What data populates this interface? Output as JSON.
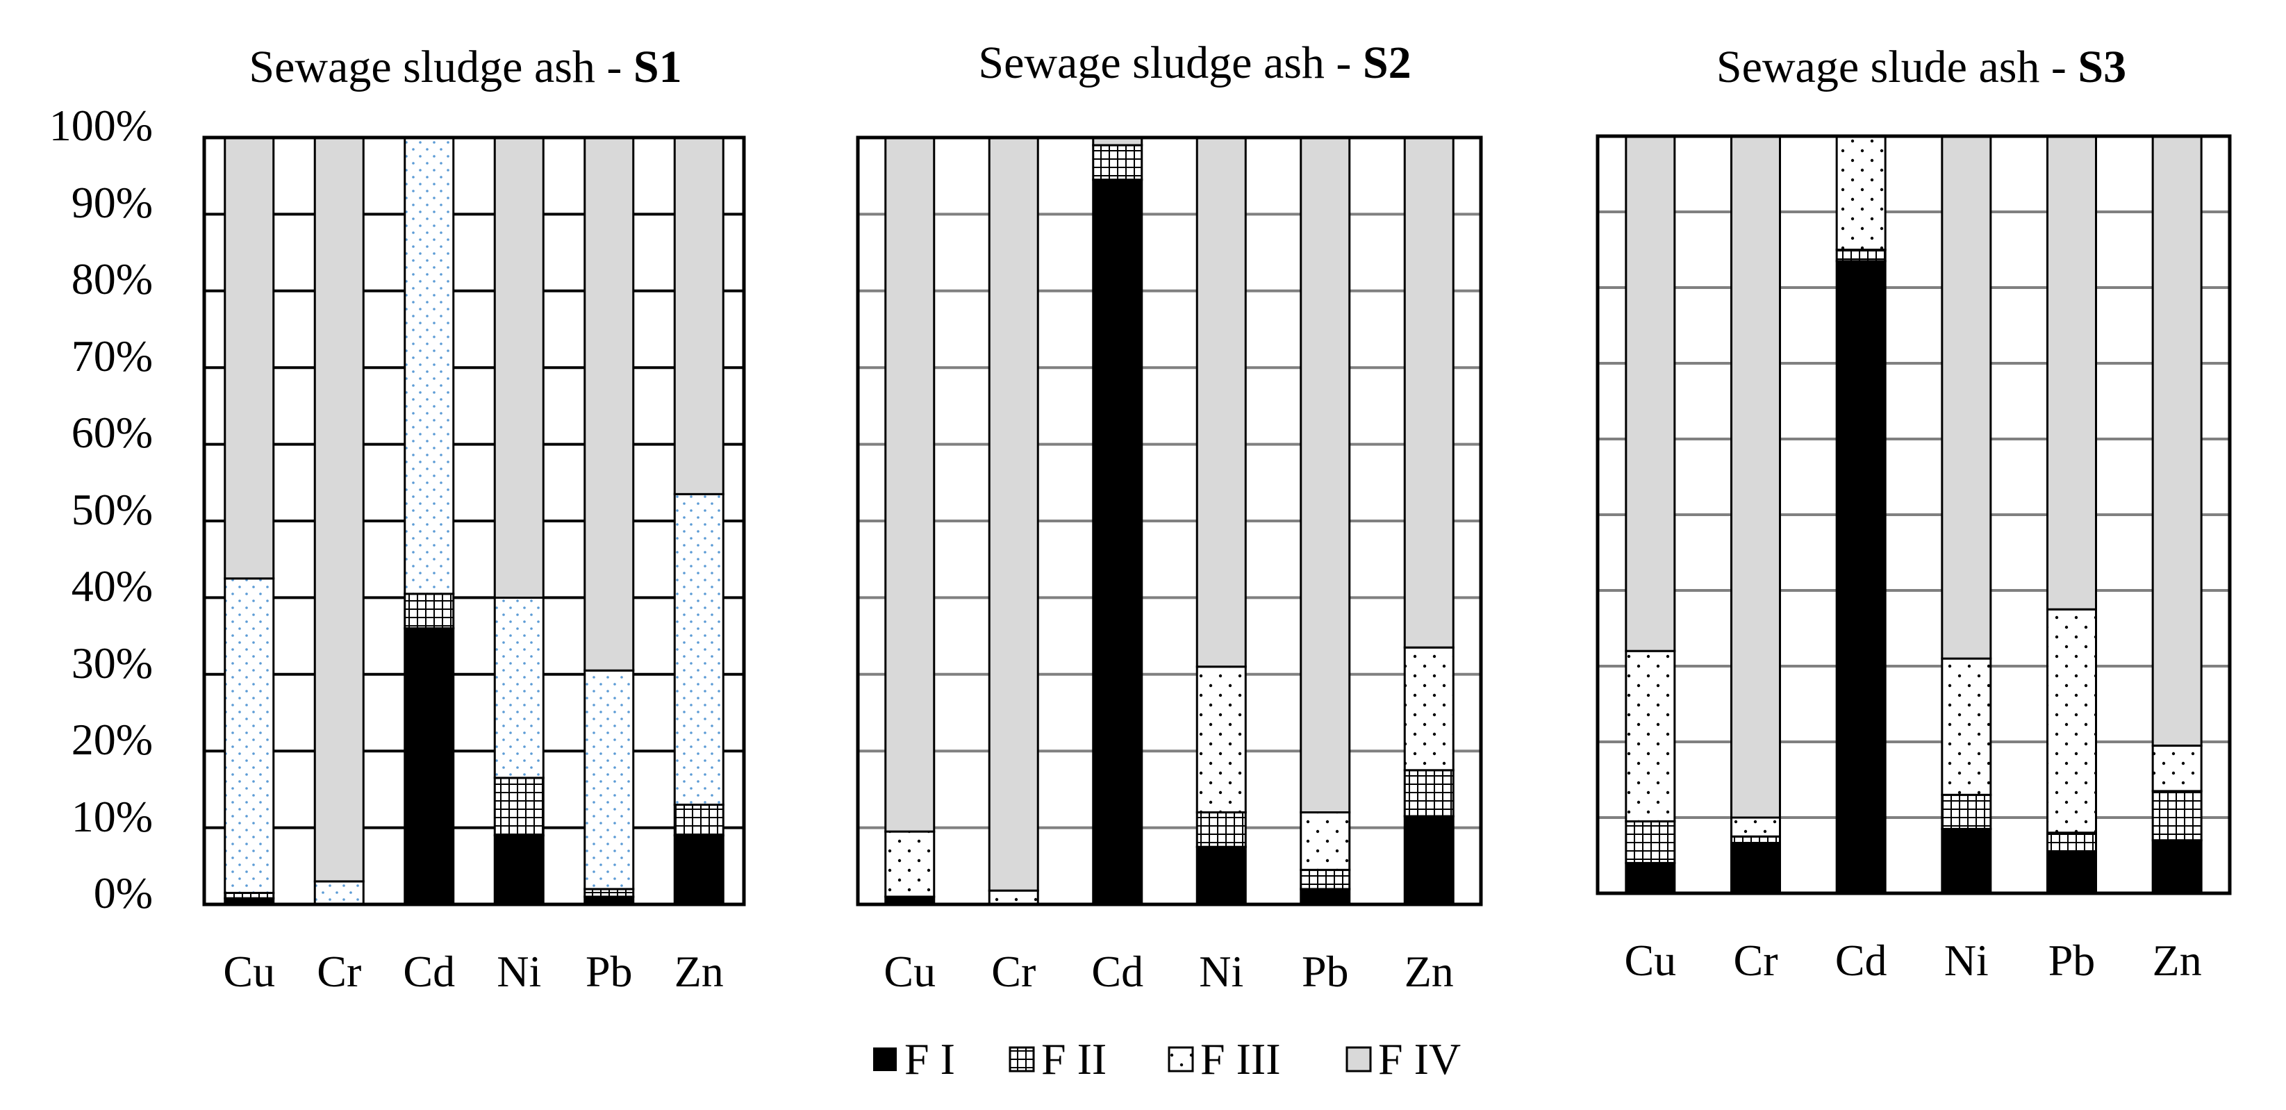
{
  "chart_data": [
    {
      "type": "bar",
      "stacked": true,
      "normalized": true,
      "title": "Sewage sludge ash - ",
      "title_bold": "S1",
      "categories": [
        "Cu",
        "Cr",
        "Cd",
        "Ni",
        "Pb",
        "Zn"
      ],
      "ylim": [
        0,
        100
      ],
      "yticks": [
        "0%",
        "10%",
        "20%",
        "30%",
        "40%",
        "50%",
        "60%",
        "70%",
        "80%",
        "90%",
        "100%"
      ],
      "xlabel": "",
      "ylabel": "",
      "series": [
        {
          "name": "F I",
          "values": [
            0.8,
            0,
            36,
            9,
            1,
            9
          ]
        },
        {
          "name": "F II",
          "values": [
            0.7,
            0,
            4.5,
            7.5,
            1,
            4
          ]
        },
        {
          "name": "F III",
          "values": [
            41,
            3,
            59.5,
            23.5,
            28.5,
            40.5
          ]
        },
        {
          "name": "F IV",
          "values": [
            57.5,
            97,
            0,
            60,
            69.5,
            46.5
          ]
        }
      ]
    },
    {
      "type": "bar",
      "stacked": true,
      "normalized": true,
      "title": "Sewage sludge ash - ",
      "title_bold": "S2",
      "categories": [
        "Cu",
        "Cr",
        "Cd",
        "Ni",
        "Pb",
        "Zn"
      ],
      "ylim": [
        0,
        100
      ],
      "xlabel": "",
      "ylabel": "",
      "series": [
        {
          "name": "F I",
          "values": [
            1,
            0,
            94.5,
            7.5,
            2,
            11.5
          ]
        },
        {
          "name": "F II",
          "values": [
            0,
            0,
            4.5,
            4.5,
            2.5,
            6
          ]
        },
        {
          "name": "F III",
          "values": [
            8.5,
            1.8,
            0,
            19,
            7.5,
            16
          ]
        },
        {
          "name": "F IV",
          "values": [
            90.5,
            98.2,
            1,
            69,
            88,
            66.5
          ]
        }
      ]
    },
    {
      "type": "bar",
      "stacked": true,
      "normalized": true,
      "title": "Sewage slude ash - ",
      "title_bold": "S3",
      "categories": [
        "Cu",
        "Cr",
        "Cd",
        "Ni",
        "Pb",
        "Zn"
      ],
      "ylim": [
        0,
        100
      ],
      "xlabel": "",
      "ylabel": "",
      "series": [
        {
          "name": "F I",
          "values": [
            4,
            6.5,
            83.5,
            8.5,
            5.5,
            7
          ]
        },
        {
          "name": "F II",
          "values": [
            5.5,
            1,
            1.5,
            4.5,
            2.5,
            6.5
          ]
        },
        {
          "name": "F III",
          "values": [
            22.5,
            2.5,
            15,
            18,
            29.5,
            6
          ]
        },
        {
          "name": "F IV",
          "values": [
            68,
            90,
            0,
            69,
            62.5,
            80.5
          ]
        }
      ]
    }
  ],
  "legend": {
    "items": [
      "F I",
      "F II",
      "F III",
      "F IV"
    ]
  },
  "colors": {
    "f1": "#000000",
    "f2": "#ffffff",
    "f3": "#ffffff",
    "f4": "#d9d9d9",
    "s1_dots": "#5b9bd5",
    "dots": "#000000",
    "grid": "#000000",
    "grid_light": "#808080"
  }
}
